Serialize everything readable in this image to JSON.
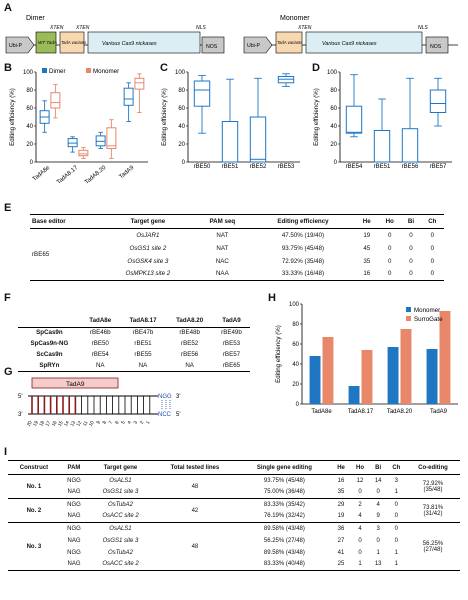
{
  "panels": {
    "a": "A",
    "b": "B",
    "c": "C",
    "d": "D",
    "e": "E",
    "f": "F",
    "g": "G",
    "h": "H",
    "i": "I"
  },
  "construct_a": {
    "dimer_title": "Dimer",
    "monomer_title": "Monomer",
    "ubi": "Ubi-P",
    "xten": "XTEN",
    "wt_tada": "WT TadA",
    "tada_variants": "TadA variants",
    "cas9": "Various Cas9 nickases",
    "nls": "NLS",
    "nos": "NOS",
    "colors": {
      "ubi": "#c8c8c8",
      "wt": "#9bbb59",
      "variants": "#f8d8b0",
      "cas9": "#dbeef4",
      "nos": "#c8c8c8"
    }
  },
  "chart_data": [
    {
      "id": "B",
      "type": "box",
      "ylabel": "Editing efficiency (%)",
      "ylim": [
        0,
        100
      ],
      "yticks": [
        0,
        20,
        40,
        60,
        80,
        100
      ],
      "legend": [
        "Dimer",
        "Monomer"
      ],
      "colors": {
        "Dimer": "#1f77c4",
        "Monomer": "#e8876a"
      },
      "categories": [
        "TadA8e",
        "TadA8.17",
        "TadA8.20",
        "TadA9"
      ],
      "boxes": [
        {
          "cat": "TadA8e",
          "series": "Dimer",
          "min": 33,
          "q1": 43,
          "median": 50,
          "q3": 57,
          "max": 68
        },
        {
          "cat": "TadA8e",
          "series": "Monomer",
          "min": 49,
          "q1": 60,
          "median": 66,
          "q3": 77,
          "max": 86
        },
        {
          "cat": "TadA8.17",
          "series": "Dimer",
          "min": 11,
          "q1": 17,
          "median": 21,
          "q3": 26,
          "max": 28
        },
        {
          "cat": "TadA8.17",
          "series": "Monomer",
          "min": 4,
          "q1": 7,
          "median": 9,
          "q3": 13,
          "max": 16
        },
        {
          "cat": "TadA8.20",
          "series": "Dimer",
          "min": 15,
          "q1": 18,
          "median": 23,
          "q3": 29,
          "max": 33
        },
        {
          "cat": "TadA8.20",
          "series": "Monomer",
          "min": 4,
          "q1": 15,
          "median": 18,
          "q3": 38,
          "max": 47
        },
        {
          "cat": "TadA9",
          "series": "Dimer",
          "min": 45,
          "q1": 63,
          "median": 70,
          "q3": 82,
          "max": 88
        },
        {
          "cat": "TadA9",
          "series": "Monomer",
          "min": 55,
          "q1": 81,
          "median": 88,
          "q3": 93,
          "max": 98
        }
      ]
    },
    {
      "id": "C",
      "type": "box",
      "ylabel": "Editing efficiency (%)",
      "ylim": [
        0,
        100
      ],
      "yticks": [
        0,
        20,
        40,
        60,
        80,
        100
      ],
      "categories": [
        "rBE50",
        "rBE51",
        "rBE52",
        "rBE53"
      ],
      "color": "#1f77c4",
      "boxes": [
        {
          "cat": "rBE50",
          "min": 32,
          "q1": 62,
          "median": 80,
          "q3": 90,
          "max": 96
        },
        {
          "cat": "rBE51",
          "min": 0,
          "q1": 0,
          "median": 0,
          "q3": 45,
          "max": 92
        },
        {
          "cat": "rBE52",
          "min": 0,
          "q1": 0,
          "median": 3,
          "q3": 50,
          "max": 93
        },
        {
          "cat": "rBE53",
          "min": 84,
          "q1": 88,
          "median": 92,
          "q3": 95,
          "max": 98
        }
      ]
    },
    {
      "id": "D",
      "type": "box",
      "ylabel": "Editing efficiency (%)",
      "ylim": [
        0,
        100
      ],
      "yticks": [
        0,
        20,
        40,
        60,
        80,
        100
      ],
      "categories": [
        "rBE54",
        "rBE51",
        "rBE56",
        "rBE57"
      ],
      "color": "#1f77c4",
      "boxes": [
        {
          "cat": "rBE54",
          "min": 28,
          "q1": 32,
          "median": 33,
          "q3": 62,
          "max": 97
        },
        {
          "cat": "rBE51",
          "min": 0,
          "q1": 0,
          "median": 0,
          "q3": 35,
          "max": 70
        },
        {
          "cat": "rBE56",
          "min": 0,
          "q1": 0,
          "median": 0,
          "q3": 37,
          "max": 93
        },
        {
          "cat": "rBE57",
          "min": 40,
          "q1": 55,
          "median": 65,
          "q3": 80,
          "max": 93
        }
      ]
    },
    {
      "id": "H",
      "type": "bar",
      "ylabel": "Editing efficiency (%)",
      "ylim": [
        0,
        100
      ],
      "yticks": [
        0,
        20,
        40,
        60,
        80,
        100
      ],
      "categories": [
        "TadA8e",
        "TadA8.17",
        "TadA8.20",
        "TadA9"
      ],
      "legend_position": "top-right",
      "series": [
        {
          "name": "Monomer",
          "color": "#1f77c4",
          "values": [
            48,
            18,
            57,
            55
          ]
        },
        {
          "name": "SurroGate",
          "color": "#e8876a",
          "values": [
            67,
            54,
            75,
            93
          ]
        }
      ]
    }
  ],
  "table_e": {
    "headers": [
      "Base editor",
      "Target gene",
      "PAM seq",
      "Editing efficiency",
      "He",
      "Ho",
      "Bi",
      "Ch"
    ],
    "editor": "rBE65",
    "rows": [
      [
        "OsJAR1",
        "NAT",
        "47.50% (19/40)",
        "19",
        "0",
        "0",
        "0"
      ],
      [
        "OsGS1 site 2",
        "NAT",
        "93.75% (45/48)",
        "45",
        "0",
        "0",
        "0"
      ],
      [
        "OsGSK4 site 3",
        "NAC",
        "72.92% (35/48)",
        "35",
        "0",
        "0",
        "0"
      ],
      [
        "OsMPK13 site 2",
        "NAA",
        "33.33% (16/48)",
        "16",
        "0",
        "0",
        "0"
      ]
    ]
  },
  "table_f": {
    "headers": [
      "",
      "TadA8e",
      "TadA8.17",
      "TadA8.20",
      "TadA9"
    ],
    "rows": [
      [
        "SpCas9n",
        "rBE46b",
        "rBE47b",
        "rBE48b",
        "rBE49b"
      ],
      [
        "SpCas9n-NG",
        "rBE50",
        "rBE51",
        "rBE52",
        "rBE53"
      ],
      [
        "ScCas9n",
        "rBE54",
        "rBE55",
        "rBE56",
        "rBE57"
      ],
      [
        "SpRYn",
        "NA",
        "NA",
        "NA",
        "rBE65"
      ]
    ]
  },
  "panel_g": {
    "label": "TadA9",
    "five_prime": "5'",
    "three_prime": "3'",
    "pam_top": "NGG",
    "pam_bottom": "NCC",
    "positions": [
      "20",
      "19",
      "18",
      "17",
      "16",
      "15",
      "14",
      "13",
      "12",
      "11",
      "10",
      "9",
      "8",
      "7",
      "6",
      "5",
      "4",
      "3",
      "2",
      "1"
    ]
  },
  "table_i": {
    "headers": [
      "Construct",
      "PAM",
      "Target gene",
      "Total tested lines",
      "Single gene editing",
      "He",
      "Ho",
      "Bi",
      "Ch",
      "Co-editing"
    ],
    "groups": [
      {
        "construct": "No. 1",
        "lines": "48",
        "coediting": "72.92%",
        "coediting_frac": "(35/48)",
        "rows": [
          [
            "NGG",
            "OsALS1",
            "93.75% (45/48)",
            "16",
            "12",
            "14",
            "3"
          ],
          [
            "NAG",
            "OsGS1 site 3",
            "75.00% (36/48)",
            "35",
            "0",
            "0",
            "1"
          ]
        ]
      },
      {
        "construct": "No. 2",
        "lines": "42",
        "coediting": "73.81%",
        "coediting_frac": "(31/42)",
        "rows": [
          [
            "NGG",
            "OsTubA2",
            "83.33% (35/42)",
            "29",
            "2",
            "4",
            "0"
          ],
          [
            "NAG",
            "OsACC site 2",
            "76.19% (32/42)",
            "19",
            "4",
            "9",
            "0"
          ]
        ]
      },
      {
        "construct": "No. 3",
        "lines": "48",
        "coediting": "56.25%",
        "coediting_frac": "(27/48)",
        "rows": [
          [
            "NGG",
            "OsALS1",
            "89.58% (43/48)",
            "36",
            "4",
            "3",
            "0"
          ],
          [
            "NAG",
            "OsGS1 site 3",
            "56.25% (27/48)",
            "27",
            "0",
            "0",
            "0"
          ],
          [
            "NGG",
            "OsTubA2",
            "89.58% (43/48)",
            "41",
            "0",
            "1",
            "1"
          ],
          [
            "NAG",
            "OsACC site 2",
            "83.33% (40/48)",
            "25",
            "1",
            "13",
            "1"
          ]
        ]
      }
    ]
  }
}
